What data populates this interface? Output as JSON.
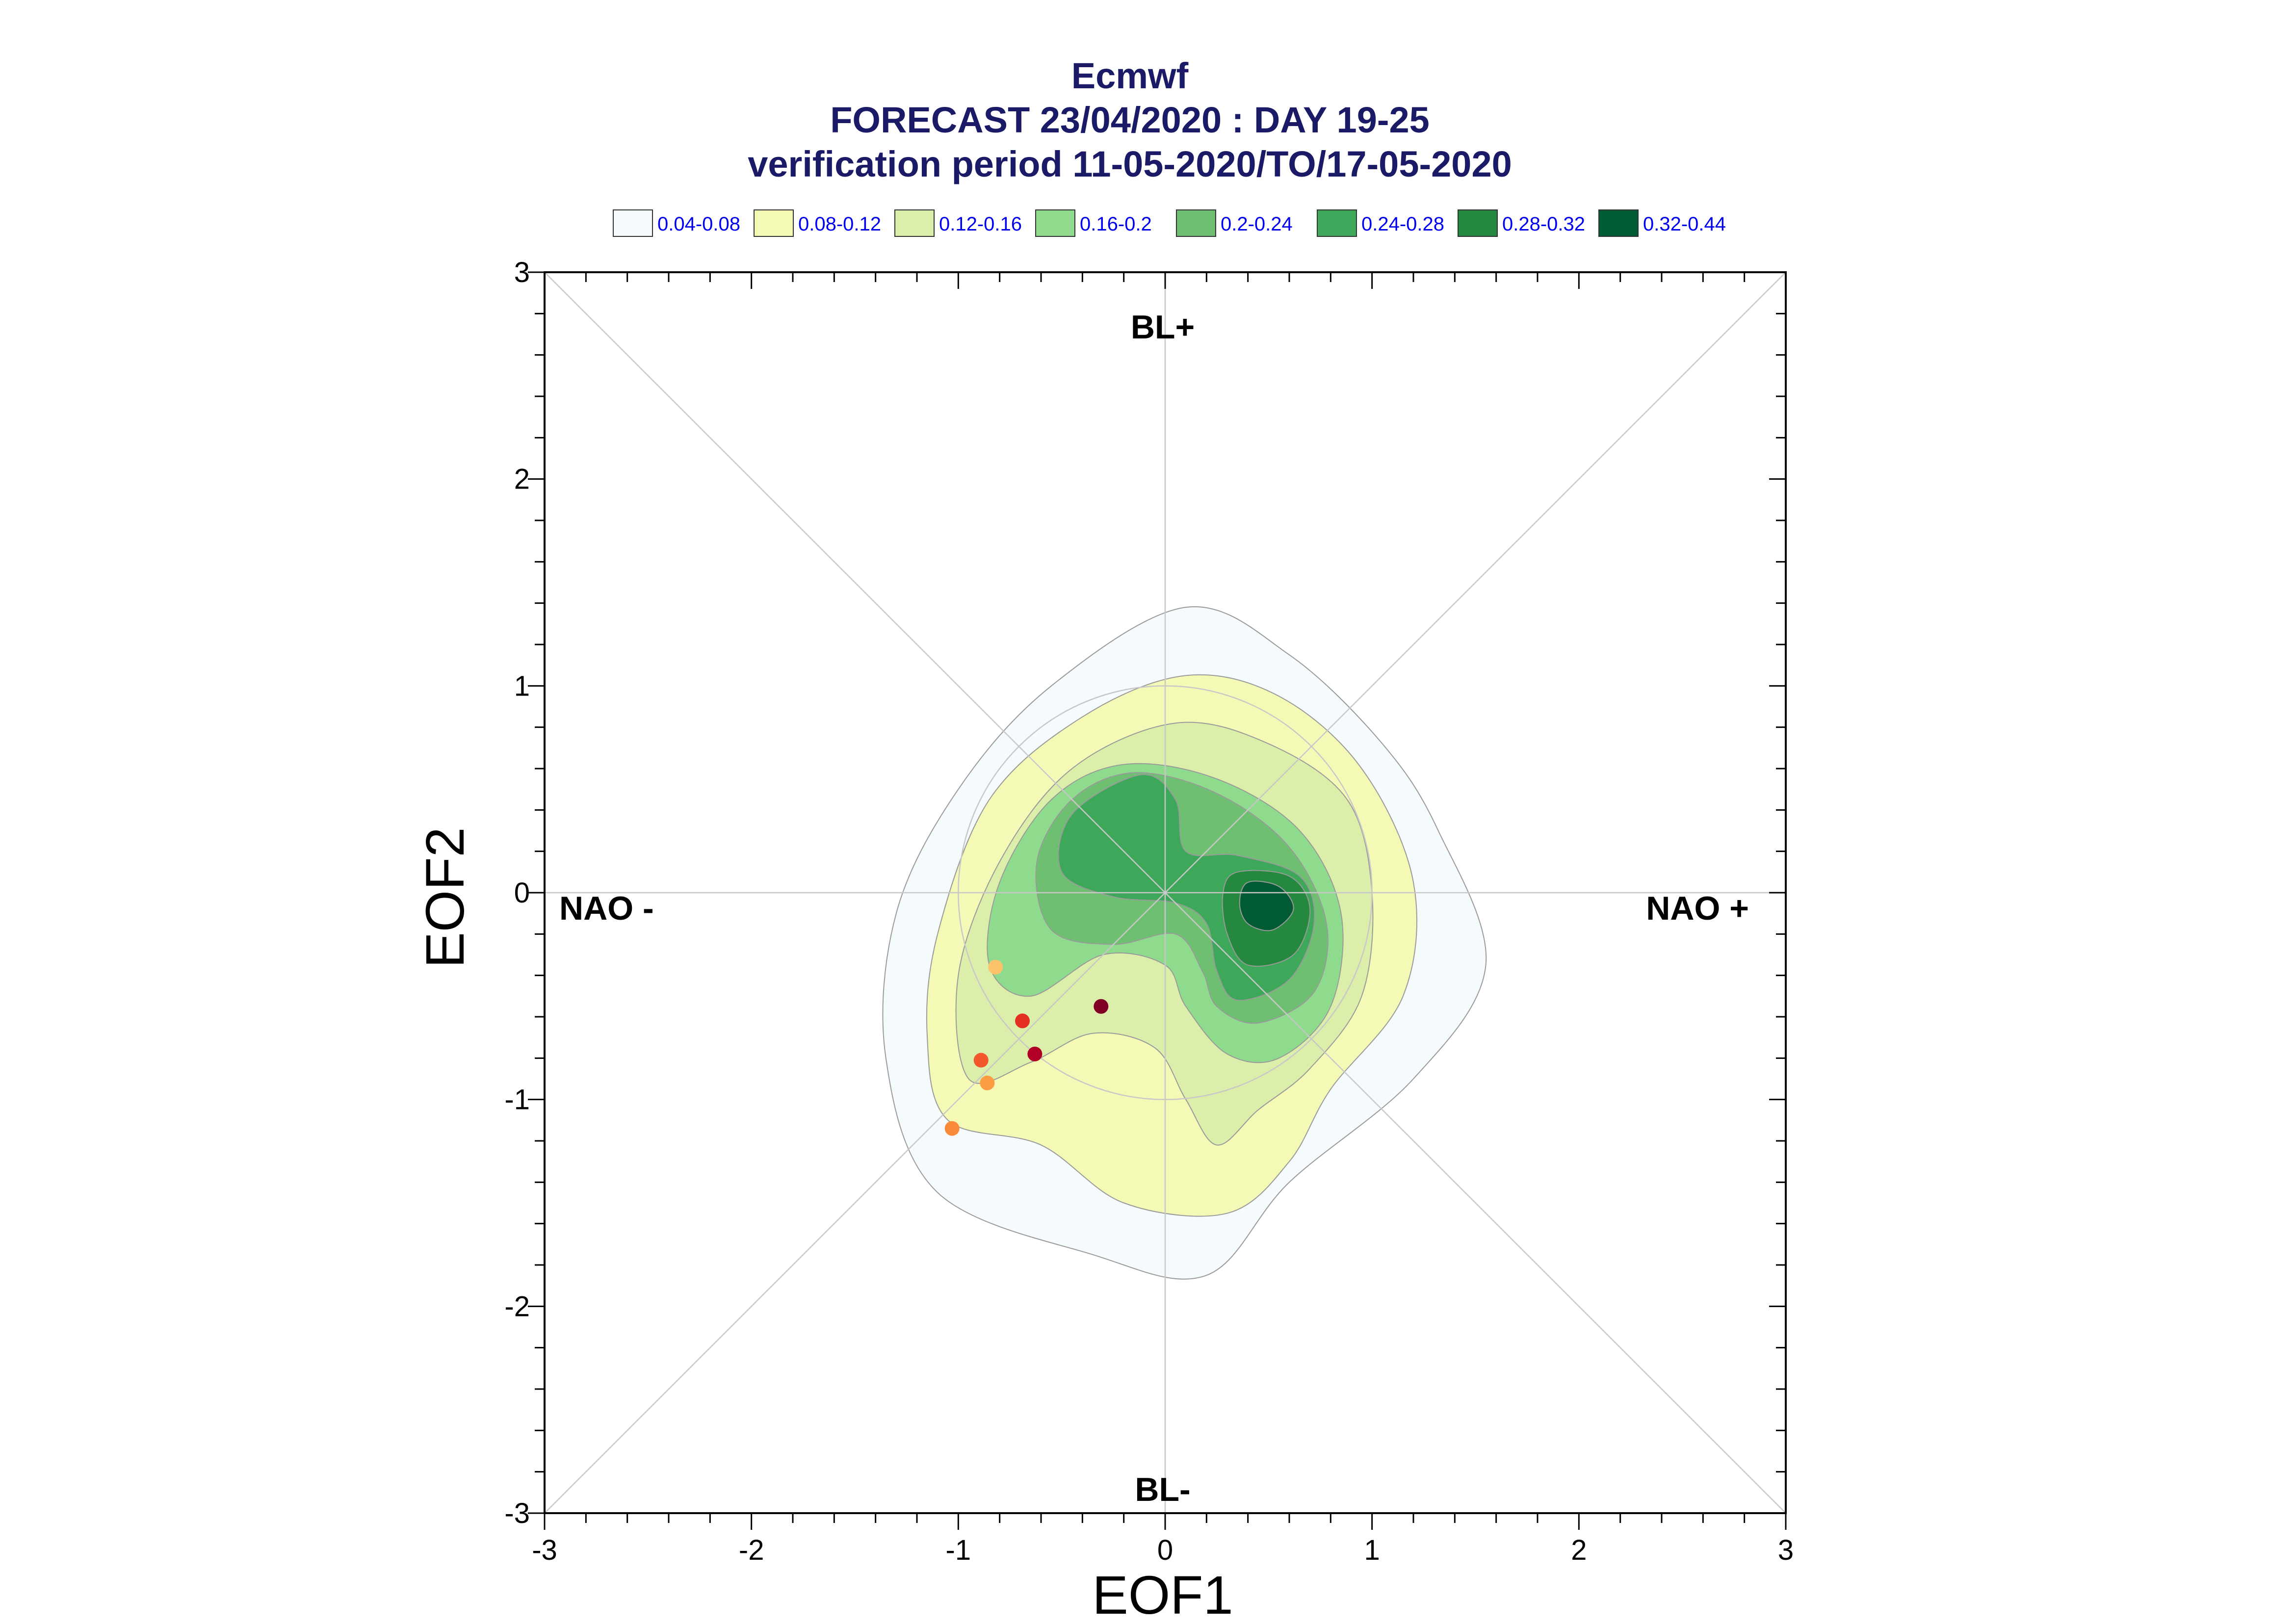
{
  "titles": [
    "Ecmwf",
    "FORECAST 23/04/2020 : DAY 19-25",
    "verification period 11-05-2020/TO/17-05-2020"
  ],
  "legend": [
    {
      "label": "0.04-0.08",
      "color": "#f5fafd"
    },
    {
      "label": "0.08-0.12",
      "color": "#f5f9b6"
    },
    {
      "label": "0.12-0.16",
      "color": "#dbeeaa"
    },
    {
      "label": "0.16-0.2",
      "color": "#8fdb8d"
    },
    {
      "label": "0.2-0.24",
      "color": "#6fbf72"
    },
    {
      "label": "0.24-0.28",
      "color": "#3ea85a"
    },
    {
      "label": "0.28-0.32",
      "color": "#24893f"
    },
    {
      "label": "0.32-0.44",
      "color": "#005a33"
    }
  ],
  "chart_data": {
    "type": "scatter",
    "xlabel": "EOF1",
    "ylabel": "EOF2",
    "xlim": [
      -3,
      3
    ],
    "ylim": [
      -3,
      3
    ],
    "xticks": [
      "-3",
      "-2",
      "-1",
      "0",
      "1",
      "2",
      "3"
    ],
    "yticks": [
      "-3",
      "-2",
      "-1",
      "0",
      "1",
      "2",
      "3"
    ],
    "regimes": {
      "top": "BL+",
      "bottom": "BL-",
      "left": "NAO -",
      "right": "NAO +"
    },
    "reference_circle_radius": 1,
    "density_contours": [
      {
        "level": "0.04-0.08",
        "color": "#f5fafd",
        "points": [
          [
            0.1,
            1.38
          ],
          [
            0.6,
            1.15
          ],
          [
            1.05,
            0.72
          ],
          [
            1.32,
            0.3
          ],
          [
            1.55,
            -0.35
          ],
          [
            1.2,
            -0.9
          ],
          [
            0.6,
            -1.4
          ],
          [
            0.2,
            -1.85
          ],
          [
            -0.35,
            -1.75
          ],
          [
            -1.1,
            -1.45
          ],
          [
            -1.35,
            -0.8
          ],
          [
            -1.3,
            -0.1
          ],
          [
            -1.0,
            0.5
          ],
          [
            -0.55,
            1.0
          ]
        ]
      },
      {
        "level": "0.08-0.12",
        "color": "#f5f9b6",
        "points": [
          [
            0.1,
            1.05
          ],
          [
            0.55,
            0.95
          ],
          [
            0.95,
            0.6
          ],
          [
            1.2,
            0.05
          ],
          [
            1.15,
            -0.5
          ],
          [
            0.8,
            -0.95
          ],
          [
            0.6,
            -1.3
          ],
          [
            0.3,
            -1.55
          ],
          [
            -0.2,
            -1.5
          ],
          [
            -0.6,
            -1.22
          ],
          [
            -1.05,
            -1.1
          ],
          [
            -1.15,
            -0.7
          ],
          [
            -1.1,
            -0.2
          ],
          [
            -0.85,
            0.45
          ],
          [
            -0.4,
            0.85
          ]
        ]
      },
      {
        "level": "0.12-0.16",
        "color": "#dbeeaa",
        "points": [
          [
            0.05,
            0.82
          ],
          [
            0.5,
            0.72
          ],
          [
            0.88,
            0.45
          ],
          [
            1.0,
            0.0
          ],
          [
            0.95,
            -0.5
          ],
          [
            0.7,
            -0.85
          ],
          [
            0.45,
            -1.05
          ],
          [
            0.25,
            -1.22
          ],
          [
            0.1,
            -1.0
          ],
          [
            -0.05,
            -0.75
          ],
          [
            -0.35,
            -0.68
          ],
          [
            -0.65,
            -0.82
          ],
          [
            -0.95,
            -0.9
          ],
          [
            -1.0,
            -0.4
          ],
          [
            -0.8,
            0.15
          ],
          [
            -0.45,
            0.6
          ]
        ]
      },
      {
        "level": "0.16-0.2",
        "color": "#8fdb8d",
        "points": [
          [
            -0.2,
            0.62
          ],
          [
            0.25,
            0.55
          ],
          [
            0.65,
            0.3
          ],
          [
            0.85,
            -0.1
          ],
          [
            0.8,
            -0.55
          ],
          [
            0.55,
            -0.8
          ],
          [
            0.3,
            -0.78
          ],
          [
            0.1,
            -0.55
          ],
          [
            0.0,
            -0.35
          ],
          [
            -0.3,
            -0.3
          ],
          [
            -0.65,
            -0.5
          ],
          [
            -0.85,
            -0.35
          ],
          [
            -0.8,
            0.05
          ],
          [
            -0.55,
            0.45
          ]
        ]
      },
      {
        "level": "0.2-0.24",
        "color": "#6fbf72",
        "points": [
          [
            -0.15,
            0.58
          ],
          [
            0.25,
            0.48
          ],
          [
            0.6,
            0.22
          ],
          [
            0.78,
            -0.15
          ],
          [
            0.72,
            -0.48
          ],
          [
            0.45,
            -0.63
          ],
          [
            0.25,
            -0.55
          ],
          [
            0.18,
            -0.38
          ],
          [
            0.05,
            -0.2
          ],
          [
            -0.25,
            -0.25
          ],
          [
            -0.55,
            -0.18
          ],
          [
            -0.62,
            0.15
          ],
          [
            -0.45,
            0.45
          ]
        ]
      },
      {
        "level": "0.24-0.28",
        "color": "#3ea85a",
        "points": [
          [
            -0.12,
            0.57
          ],
          [
            0.05,
            0.45
          ],
          [
            0.1,
            0.2
          ],
          [
            0.35,
            0.18
          ],
          [
            0.65,
            0.08
          ],
          [
            0.72,
            -0.15
          ],
          [
            0.6,
            -0.42
          ],
          [
            0.35,
            -0.52
          ],
          [
            0.25,
            -0.38
          ],
          [
            0.2,
            -0.15
          ],
          [
            0.05,
            -0.05
          ],
          [
            -0.25,
            -0.02
          ],
          [
            -0.5,
            0.1
          ],
          [
            -0.45,
            0.38
          ]
        ]
      },
      {
        "level": "0.28-0.32",
        "color": "#24893f",
        "points": [
          [
            0.35,
            0.1
          ],
          [
            0.6,
            0.08
          ],
          [
            0.7,
            -0.08
          ],
          [
            0.62,
            -0.3
          ],
          [
            0.4,
            -0.35
          ],
          [
            0.3,
            -0.2
          ],
          [
            0.28,
            0.0
          ]
        ]
      },
      {
        "level": "0.32-0.44",
        "color": "#005a33",
        "points": [
          [
            0.4,
            0.05
          ],
          [
            0.55,
            0.03
          ],
          [
            0.62,
            -0.08
          ],
          [
            0.52,
            -0.18
          ],
          [
            0.4,
            -0.15
          ],
          [
            0.36,
            -0.05
          ]
        ]
      }
    ],
    "points": [
      {
        "x": -0.82,
        "y": -0.36,
        "color": "#fdc36b"
      },
      {
        "x": -0.69,
        "y": -0.62,
        "color": "#e33020"
      },
      {
        "x": -0.31,
        "y": -0.55,
        "color": "#800026"
      },
      {
        "x": -0.63,
        "y": -0.78,
        "color": "#b00026"
      },
      {
        "x": -0.89,
        "y": -0.81,
        "color": "#f2582c"
      },
      {
        "x": -0.86,
        "y": -0.92,
        "color": "#fd9d43"
      },
      {
        "x": -1.03,
        "y": -1.14,
        "color": "#f98a3a"
      }
    ]
  }
}
